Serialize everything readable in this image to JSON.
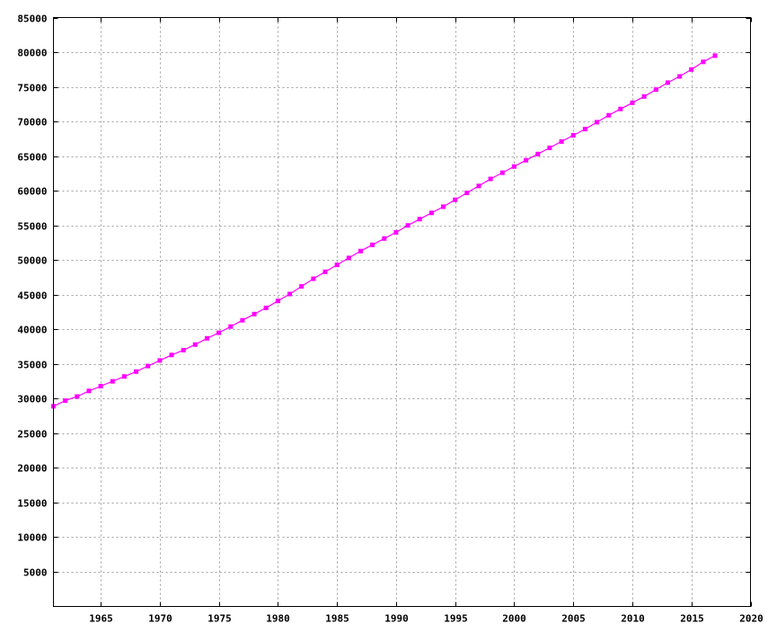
{
  "chart_data": {
    "type": "line",
    "title": "",
    "xlabel": "",
    "ylabel": "",
    "xlim": [
      1961,
      2020
    ],
    "ylim": [
      0,
      85000
    ],
    "x_ticks": [
      1965,
      1970,
      1975,
      1980,
      1985,
      1990,
      1995,
      2000,
      2005,
      2010,
      2015,
      2020
    ],
    "y_ticks": [
      5000,
      10000,
      15000,
      20000,
      25000,
      30000,
      35000,
      40000,
      45000,
      50000,
      55000,
      60000,
      65000,
      70000,
      75000,
      80000,
      85000
    ],
    "grid": true,
    "legend": "none",
    "series": [
      {
        "color": "#ff00ff",
        "marker": "square",
        "x": [
          1961,
          1962,
          1963,
          1964,
          1965,
          1966,
          1967,
          1968,
          1969,
          1970,
          1971,
          1972,
          1973,
          1974,
          1975,
          1976,
          1977,
          1978,
          1979,
          1980,
          1981,
          1982,
          1983,
          1984,
          1985,
          1986,
          1987,
          1988,
          1989,
          1990,
          1991,
          1992,
          1993,
          1994,
          1995,
          1996,
          1997,
          1998,
          1999,
          2000,
          2001,
          2002,
          2003,
          2004,
          2005,
          2006,
          2007,
          2008,
          2009,
          2010,
          2011,
          2012,
          2013,
          2014,
          2015,
          2016,
          2017
        ],
        "y": [
          28900,
          29700,
          30300,
          31100,
          31800,
          32500,
          33200,
          33900,
          34700,
          35500,
          36300,
          37000,
          37800,
          38700,
          39500,
          40400,
          41300,
          42200,
          43100,
          44100,
          45100,
          46200,
          47300,
          48300,
          49300,
          50300,
          51300,
          52200,
          53100,
          54000,
          55000,
          55900,
          56800,
          57700,
          58700,
          59700,
          60700,
          61700,
          62600,
          63500,
          64400,
          65300,
          66200,
          67100,
          68000,
          68900,
          69900,
          70900,
          71800,
          72700,
          73600,
          74600,
          75600,
          76500,
          77500,
          78600,
          79500
        ]
      }
    ]
  }
}
